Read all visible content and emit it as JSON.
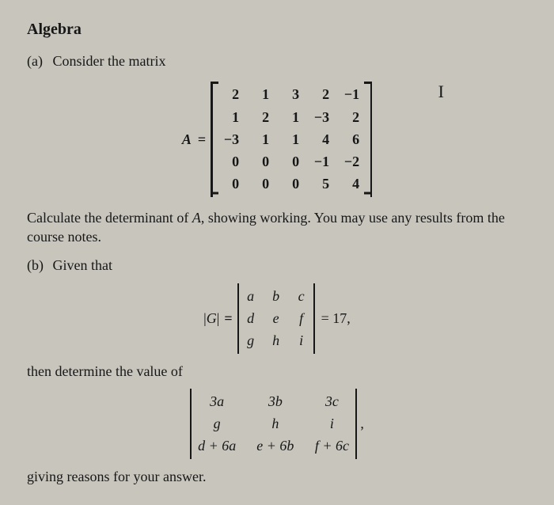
{
  "title": "Algebra",
  "partA": {
    "label": "(a)",
    "intro": "Consider the matrix",
    "lhs": "A",
    "eq": "=",
    "rows": [
      [
        "2",
        "1",
        "3",
        "2",
        "−1"
      ],
      [
        "1",
        "2",
        "1",
        "−3",
        "2"
      ],
      [
        "−3",
        "1",
        "1",
        "4",
        "6"
      ],
      [
        "0",
        "0",
        "0",
        "−1",
        "−2"
      ],
      [
        "0",
        "0",
        "0",
        "5",
        "4"
      ]
    ],
    "cursorMark": "I",
    "prose1": "Calculate the determinant of ",
    "prose1_it": "A",
    "prose1_rest": ", showing working. You may use any results from the course notes."
  },
  "partB": {
    "label": "(b)",
    "intro": "Given that",
    "absG": "|G|",
    "eq": "=",
    "detRows": [
      [
        "a",
        "b",
        "c"
      ],
      [
        "d",
        "e",
        "f"
      ],
      [
        "g",
        "h",
        "i"
      ]
    ],
    "rhs": "= 17,",
    "then": "then determine the value of",
    "det2Rows": [
      [
        "3a",
        "3b",
        "3c"
      ],
      [
        "g",
        "h",
        "i"
      ],
      [
        "d + 6a",
        "e + 6b",
        "f + 6c"
      ]
    ],
    "trailingComma": ",",
    "closing": "giving reasons for your answer."
  }
}
